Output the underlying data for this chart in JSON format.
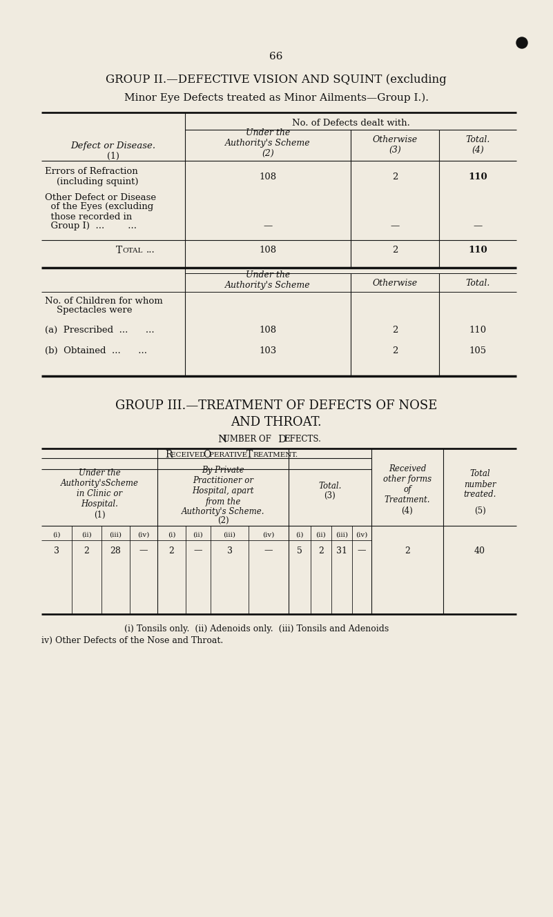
{
  "bg_color": "#f0ebe0",
  "page_number": "66",
  "group2_title_line1": "GROUP II.—DEFECTIVE VISION AND SQUINT (excluding",
  "group2_title_line2": "Minor Eye Defects treated as Minor Ailments—Group I.).",
  "table1_header_span": "No. of Defects dealt with.",
  "table2_header_col2": "Under the\nAuthority's Scheme",
  "table2_header_col3": "Otherwise",
  "table2_header_col4": "Total.",
  "group3_title_line1": "GROUP III.—TREATMENT OF DEFECTS OF NOSE",
  "group3_title_line2": "AND THROAT.",
  "group3_subtitle": "Number of Defects.",
  "table3_header_operative": "Received Operative Treatment.",
  "table3_col1_header": "Under the\nAuthority'sScheme\nin Clinic or\nHospital.",
  "table3_col2_header": "By Private\nPractitioner or\nHospital, apart\nfrom the\nAuthority's Scheme.",
  "table3_col3_header": "Total.",
  "table3_col4_header": "Received\nother forms\nof\nTreatment.",
  "table3_col5_header": "Total\nnumber\ntreated.",
  "table3_data_auth": [
    "3",
    "2",
    "28",
    "—"
  ],
  "table3_data_private": [
    "2",
    "—",
    "3",
    "—"
  ],
  "table3_data_total": [
    "5",
    "2",
    "31",
    "—"
  ],
  "table3_received_other": "2",
  "table3_total_number": "40",
  "footnote_line1": "(i) Tonsils only.  (ii) Adenoids only.  (iii) Tonsils and Adenoids",
  "footnote_line2": "iv) Other Defects of the Nose and Throat."
}
